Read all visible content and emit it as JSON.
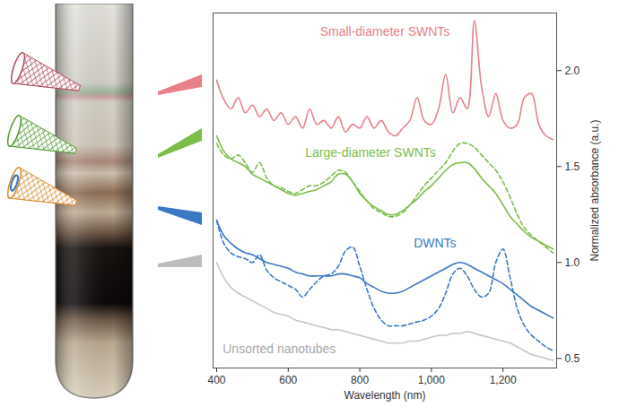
{
  "chart_data": {
    "type": "line",
    "x_label": "Wavelength (nm)",
    "y_label": "Normalized absorbance (a.u.)",
    "x": [
      400,
      420,
      440,
      460,
      480,
      500,
      520,
      540,
      560,
      580,
      600,
      620,
      640,
      660,
      680,
      700,
      720,
      740,
      760,
      780,
      800,
      820,
      840,
      860,
      880,
      900,
      920,
      940,
      960,
      980,
      1000,
      1020,
      1040,
      1060,
      1080,
      1100,
      1120,
      1140,
      1160,
      1180,
      1200,
      1220,
      1240,
      1260,
      1280,
      1300,
      1320,
      1340
    ],
    "series": [
      {
        "name": "Small-diameter SWNTs",
        "color": "#e8808a",
        "line_style": "solid",
        "values": [
          1.95,
          1.85,
          1.8,
          1.86,
          1.78,
          1.82,
          1.76,
          1.8,
          1.74,
          1.78,
          1.72,
          1.76,
          1.7,
          1.8,
          1.72,
          1.74,
          1.7,
          1.76,
          1.68,
          1.72,
          1.7,
          1.76,
          1.7,
          1.74,
          1.68,
          1.66,
          1.7,
          1.74,
          1.86,
          1.74,
          1.72,
          1.8,
          1.98,
          1.78,
          1.86,
          1.8,
          2.26,
          1.92,
          1.76,
          1.88,
          1.74,
          1.7,
          1.72,
          1.86,
          1.88,
          1.72,
          1.66,
          1.64
        ]
      },
      {
        "name": "Large-diameter SWNTs",
        "color": "#7cbd4a",
        "line_style": "solid",
        "values": [
          1.66,
          1.58,
          1.54,
          1.52,
          1.5,
          1.46,
          1.44,
          1.42,
          1.4,
          1.38,
          1.36,
          1.35,
          1.36,
          1.37,
          1.38,
          1.4,
          1.42,
          1.46,
          1.46,
          1.42,
          1.36,
          1.32,
          1.29,
          1.27,
          1.25,
          1.25,
          1.27,
          1.3,
          1.33,
          1.37,
          1.4,
          1.44,
          1.48,
          1.51,
          1.52,
          1.52,
          1.49,
          1.44,
          1.4,
          1.36,
          1.3,
          1.24,
          1.2,
          1.16,
          1.13,
          1.11,
          1.09,
          1.07
        ]
      },
      {
        "name": "Large-diameter SWNTs",
        "color": "#7cbd4a",
        "line_style": "dashed",
        "values": [
          1.62,
          1.56,
          1.54,
          1.56,
          1.52,
          1.47,
          1.52,
          1.44,
          1.4,
          1.39,
          1.37,
          1.36,
          1.38,
          1.4,
          1.4,
          1.42,
          1.45,
          1.48,
          1.47,
          1.42,
          1.37,
          1.32,
          1.28,
          1.26,
          1.24,
          1.24,
          1.26,
          1.3,
          1.35,
          1.4,
          1.44,
          1.48,
          1.52,
          1.58,
          1.62,
          1.62,
          1.6,
          1.56,
          1.52,
          1.48,
          1.42,
          1.34,
          1.25,
          1.18,
          1.14,
          1.11,
          1.08,
          1.05
        ]
      },
      {
        "name": "DWNTs",
        "color": "#3b78c4",
        "line_style": "solid",
        "values": [
          1.22,
          1.14,
          1.1,
          1.07,
          1.05,
          1.04,
          1.02,
          1.0,
          0.99,
          0.98,
          0.97,
          0.95,
          0.94,
          0.93,
          0.93,
          0.93,
          0.93,
          0.94,
          0.94,
          0.93,
          0.92,
          0.89,
          0.87,
          0.85,
          0.84,
          0.84,
          0.85,
          0.87,
          0.89,
          0.91,
          0.93,
          0.95,
          0.97,
          0.99,
          1.0,
          0.99,
          0.97,
          0.95,
          0.93,
          0.91,
          0.89,
          0.86,
          0.83,
          0.8,
          0.77,
          0.75,
          0.73,
          0.71
        ]
      },
      {
        "name": "DWNTs",
        "color": "#3b78c4",
        "line_style": "dashed",
        "values": [
          1.22,
          1.1,
          1.05,
          1.03,
          1.02,
          1.0,
          1.04,
          0.96,
          0.92,
          0.9,
          0.88,
          0.86,
          0.82,
          0.86,
          0.9,
          0.93,
          0.94,
          0.98,
          1.06,
          1.08,
          0.98,
          0.86,
          0.76,
          0.7,
          0.67,
          0.67,
          0.67,
          0.68,
          0.69,
          0.7,
          0.72,
          0.76,
          0.84,
          0.94,
          0.97,
          0.93,
          0.86,
          0.82,
          0.84,
          1.0,
          1.07,
          0.92,
          0.76,
          0.67,
          0.62,
          0.59,
          0.56,
          0.54
        ]
      },
      {
        "name": "Unsorted nanotubes",
        "color": "#c8c8c8",
        "line_style": "solid",
        "values": [
          1.0,
          0.92,
          0.87,
          0.84,
          0.82,
          0.8,
          0.78,
          0.76,
          0.74,
          0.73,
          0.72,
          0.7,
          0.69,
          0.68,
          0.67,
          0.66,
          0.65,
          0.65,
          0.64,
          0.63,
          0.62,
          0.61,
          0.6,
          0.59,
          0.58,
          0.58,
          0.58,
          0.59,
          0.59,
          0.6,
          0.61,
          0.62,
          0.62,
          0.63,
          0.63,
          0.64,
          0.63,
          0.62,
          0.61,
          0.6,
          0.59,
          0.58,
          0.56,
          0.54,
          0.52,
          0.51,
          0.5,
          0.49
        ]
      }
    ],
    "xlim": [
      390,
      1350
    ],
    "ylim": [
      0.45,
      2.3
    ],
    "xticks": [
      400,
      600,
      800,
      {
        "value": 1000,
        "label": "1,000"
      },
      {
        "value": 1200,
        "label": "1,200"
      }
    ],
    "yticks": [
      0.5,
      {
        "value": 1,
        "label": "1.0"
      },
      1.5,
      {
        "value": 2,
        "label": "2.0"
      }
    ],
    "annotations": [
      {
        "text": "Small-diameter SWNTs",
        "x": 870,
        "y": 2.2,
        "color": "#e8808a"
      },
      {
        "text": "Large-diameter SWNTs",
        "x": 830,
        "y": 1.57,
        "color": "#7cbd4a"
      },
      {
        "text": "DWNTs",
        "x": 1010,
        "y": 1.1,
        "color": "#3b78c4"
      },
      {
        "text": "Unsorted nanotubes",
        "x": 575,
        "y": 0.55,
        "color": "#a8a8a8"
      }
    ]
  }
}
